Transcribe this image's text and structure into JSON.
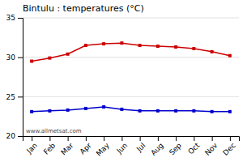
{
  "chart_data": {
    "type": "line",
    "title": "Bintulu : temperatures (°C)",
    "categories": [
      "Jan",
      "Feb",
      "Mar",
      "Apr",
      "May",
      "Jun",
      "Jul",
      "Aug",
      "Sep",
      "Oct",
      "Nov",
      "Dec"
    ],
    "series": [
      {
        "color": "#cc0000",
        "marker": "square",
        "values": [
          29.5,
          29.9,
          30.4,
          31.5,
          31.7,
          31.8,
          31.5,
          31.4,
          31.3,
          31.1,
          30.7,
          30.2
        ]
      },
      {
        "color": "#0000cc",
        "marker": "square",
        "values": [
          23.1,
          23.2,
          23.3,
          23.5,
          23.7,
          23.4,
          23.2,
          23.2,
          23.2,
          23.2,
          23.1,
          23.1
        ]
      }
    ],
    "ylim": [
      20,
      35
    ],
    "yticks": [
      20,
      25,
      30,
      35
    ],
    "grid": true,
    "annotation": "www.allmetsat.com"
  }
}
